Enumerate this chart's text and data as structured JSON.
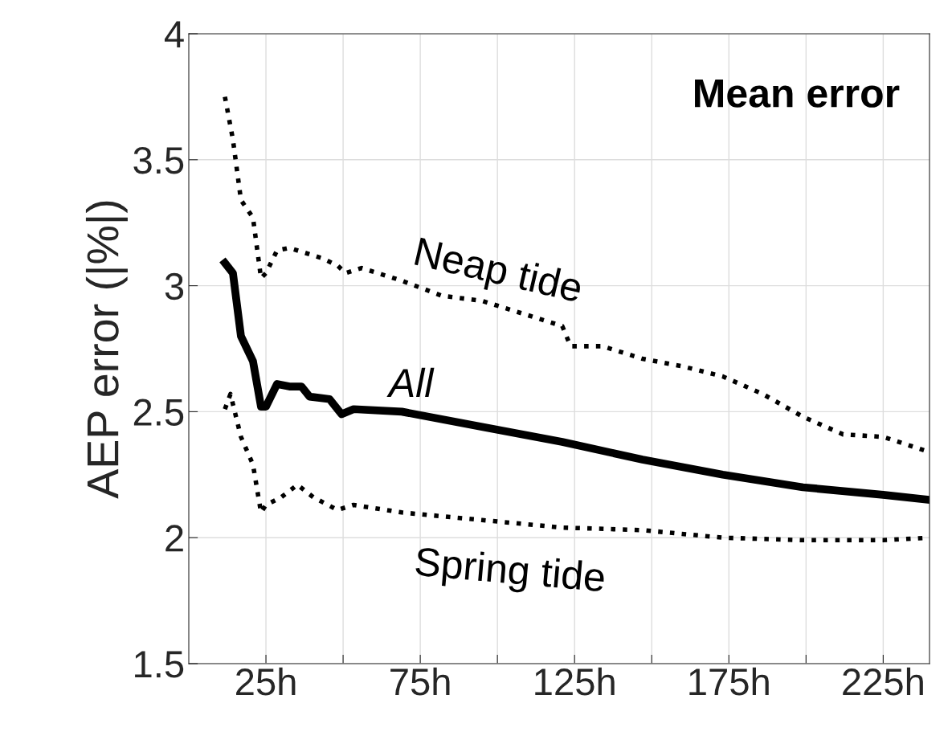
{
  "chart_data": {
    "type": "line",
    "ylabel": "AEP error (|%|)",
    "annotations": [
      "Mean error"
    ],
    "xlim": [
      0,
      240
    ],
    "ylim": [
      1.5,
      4
    ],
    "xticks": [
      {
        "value": 25,
        "label": "25h"
      },
      {
        "value": 50,
        "label": null
      },
      {
        "value": 75,
        "label": "75h"
      },
      {
        "value": 100,
        "label": null
      },
      {
        "value": 125,
        "label": "125h"
      },
      {
        "value": 150,
        "label": null
      },
      {
        "value": 175,
        "label": "175h"
      },
      {
        "value": 200,
        "label": null
      },
      {
        "value": 225,
        "label": "225h"
      }
    ],
    "yticks": [
      1.5,
      2,
      2.5,
      3,
      3.5,
      4
    ],
    "grid": true,
    "legend": false,
    "marker": "none",
    "series": [
      {
        "name": "Neap tide",
        "color": "#000000",
        "line_style": "dotted",
        "x": [
          11.7,
          14.3,
          16.9,
          20.8,
          23.4,
          25,
          28.6,
          32.6,
          43,
          48.2,
          50.8,
          56,
          69,
          82,
          95,
          108,
          121,
          123.7,
          134,
          147,
          160,
          173,
          186,
          199,
          212,
          225,
          240
        ],
        "values": [
          3.75,
          3.58,
          3.34,
          3.27,
          3.03,
          3.05,
          3.14,
          3.15,
          3.11,
          3.08,
          3.05,
          3.07,
          3.02,
          2.96,
          2.94,
          2.89,
          2.84,
          2.76,
          2.76,
          2.71,
          2.68,
          2.64,
          2.57,
          2.48,
          2.41,
          2.4,
          2.34
        ]
      },
      {
        "name": "All",
        "color": "#000000",
        "line_style": "solid",
        "x": [
          11.7,
          14.3,
          16.9,
          20.8,
          23.4,
          25,
          28.6,
          32.6,
          36.5,
          39.1,
          45.6,
          49.5,
          53.4,
          69,
          95,
          121,
          147,
          173,
          199,
          225,
          240
        ],
        "values": [
          3.09,
          3.05,
          2.8,
          2.7,
          2.52,
          2.52,
          2.61,
          2.6,
          2.6,
          2.56,
          2.55,
          2.49,
          2.51,
          2.5,
          2.44,
          2.38,
          2.31,
          2.25,
          2.2,
          2.17,
          2.15
        ]
      },
      {
        "name": "Spring tide",
        "color": "#000000",
        "line_style": "dotted",
        "x": [
          11.7,
          13.5,
          16.9,
          20.8,
          23.4,
          25,
          29.9,
          35.2,
          40.4,
          48.2,
          53.4,
          69,
          95,
          121,
          147,
          173,
          199,
          225,
          240
        ],
        "values": [
          2.51,
          2.57,
          2.4,
          2.29,
          2.1,
          2.13,
          2.16,
          2.21,
          2.16,
          2.11,
          2.13,
          2.1,
          2.07,
          2.04,
          2.03,
          2.0,
          1.99,
          1.99,
          2.0
        ]
      }
    ]
  }
}
